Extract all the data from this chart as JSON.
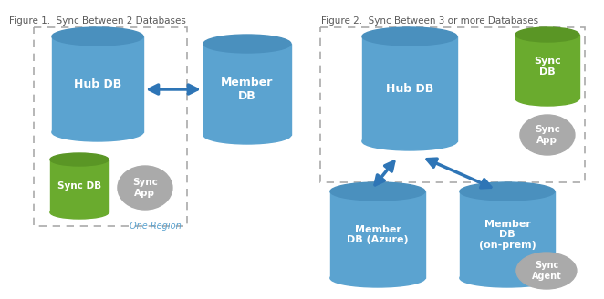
{
  "fig1_title": "Figure 1.  Sync Between 2 Databases",
  "fig2_title": "Figure 2.  Sync Between 3 or more Databases",
  "blue_body": "#5ba3d0",
  "blue_top": "#4a90be",
  "green_body": "#6aab2e",
  "green_top": "#5a9625",
  "gray_body": "#aaaaaa",
  "gray_top": "#999999",
  "arrow_color": "#2e75b6",
  "white": "#ffffff",
  "region_text_color": "#5ba3d0",
  "title_color": "#595959",
  "dashed_color": "#aaaaaa",
  "bg_color": "#ffffff"
}
